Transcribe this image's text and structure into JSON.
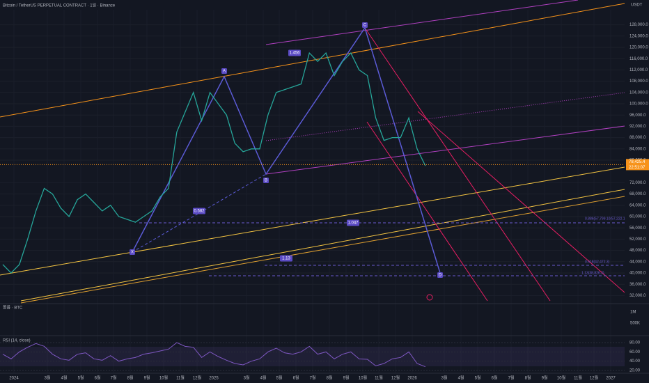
{
  "header": {
    "title": "Bitcoin / TetherUS PERPETUAL CONTRACT · 1일 · Binance",
    "currency": "USDT"
  },
  "price_axis": {
    "ticks": [
      {
        "value": 128000,
        "label": "128,000.0"
      },
      {
        "value": 124000,
        "label": "124,000.0"
      },
      {
        "value": 120000,
        "label": "120,000.0"
      },
      {
        "value": 116000,
        "label": "116,000.0"
      },
      {
        "value": 112000,
        "label": "112,000.0"
      },
      {
        "value": 108000,
        "label": "108,000.0"
      },
      {
        "value": 104000,
        "label": "104,000.0"
      },
      {
        "value": 100000,
        "label": "100,000.0"
      },
      {
        "value": 96000,
        "label": "96,000.0"
      },
      {
        "value": 92000,
        "label": "92,000.0"
      },
      {
        "value": 88000,
        "label": "88,000.0"
      },
      {
        "value": 84000,
        "label": "84,000.0"
      },
      {
        "value": 80000,
        "label": "80,000.0"
      },
      {
        "value": 72000,
        "label": "72,000.0"
      },
      {
        "value": 68000,
        "label": "68,000.0"
      },
      {
        "value": 64000,
        "label": "64,000.0"
      },
      {
        "value": 60000,
        "label": "60,000.0"
      },
      {
        "value": 56000,
        "label": "56,000.0"
      },
      {
        "value": 52000,
        "label": "52,000.0"
      },
      {
        "value": 48000,
        "label": "48,000.0"
      },
      {
        "value": 44000,
        "label": "44,000.0"
      },
      {
        "value": 40000,
        "label": "40,000.0"
      },
      {
        "value": 36000,
        "label": "36,000.0"
      },
      {
        "value": 32000,
        "label": "32,000.0"
      }
    ]
  },
  "last_price": {
    "value": 78425.4,
    "label": "78,425.4",
    "countdown": "22:51:07"
  },
  "price_series": {
    "values": [
      43000,
      40000,
      43000,
      52000,
      62000,
      70000,
      68000,
      63000,
      60000,
      66000,
      68000,
      65000,
      62000,
      64000,
      60000,
      59000,
      58000,
      60000,
      62000,
      67000,
      70000,
      90000,
      97000,
      104000,
      94000,
      104000,
      100000,
      96000,
      86000,
      83000,
      84000,
      84000,
      96000,
      104000,
      105000,
      106000,
      107000,
      118000,
      115000,
      118000,
      110000,
      115000,
      118000,
      112000,
      110000,
      95000,
      87000,
      88000,
      88000,
      95000,
      84000,
      78000
    ]
  },
  "time_axis": {
    "labels": [
      "2024",
      "3월",
      "4월",
      "5월",
      "6월",
      "7월",
      "8월",
      "9월",
      "10월",
      "11월",
      "12월",
      "2025",
      "3월",
      "4월",
      "5월",
      "6월",
      "7월",
      "8월",
      "9월",
      "10월",
      "11월",
      "12월",
      "2026",
      "3월",
      "4월",
      "5월",
      "6월",
      "7월",
      "8월",
      "9월",
      "10월",
      "11월",
      "12월",
      "2027"
    ]
  },
  "pattern": {
    "points": [
      "X",
      "A",
      "B",
      "C",
      "D"
    ],
    "ratios": [
      "1.456",
      "0.582",
      "1.047",
      "1.13"
    ],
    "fib_labels": [
      "0.886(57,799.10(57,222.1))",
      "0.618(42,472.3)",
      "1.13(38,826.3)"
    ]
  },
  "volume": {
    "title": "볼륨 · BTC",
    "ticks": [
      "1M",
      "500K"
    ]
  },
  "rsi": {
    "title": "RSI (14, close)",
    "ticks": [
      {
        "value": 80,
        "label": "80.00"
      },
      {
        "value": 60,
        "label": "60.00"
      },
      {
        "value": 40,
        "label": "40.00"
      },
      {
        "value": 20,
        "label": "20.00"
      }
    ],
    "values": [
      55,
      45,
      60,
      70,
      78,
      72,
      55,
      45,
      42,
      55,
      58,
      45,
      42,
      52,
      40,
      45,
      48,
      55,
      58,
      62,
      66,
      80,
      72,
      70,
      48,
      60,
      50,
      42,
      35,
      32,
      40,
      45,
      60,
      68,
      58,
      55,
      60,
      72,
      55,
      60,
      45,
      55,
      60,
      45,
      44,
      30,
      35,
      45,
      48,
      60,
      35,
      28
    ]
  }
}
